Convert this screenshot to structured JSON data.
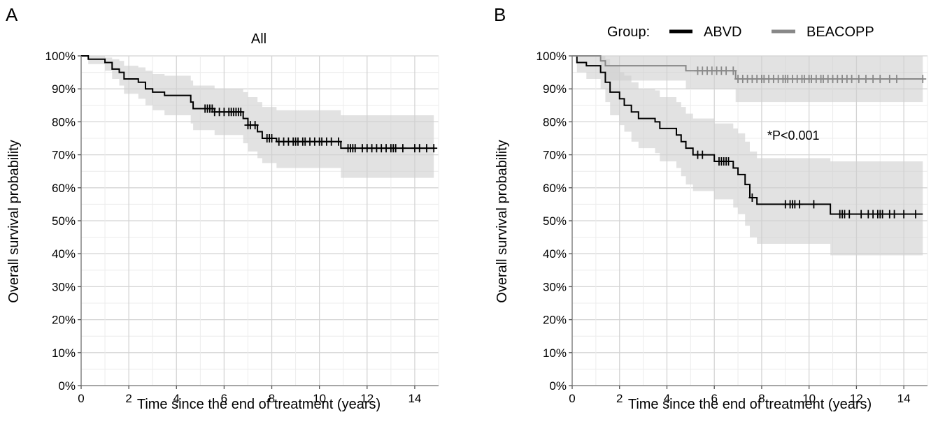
{
  "chart_data": [
    {
      "type": "line",
      "panel_label": "A",
      "title": "All",
      "xlabel": "Time since the end of treatment (years)",
      "ylabel": "Overall survival probability",
      "xlim": [
        0,
        15
      ],
      "ylim": [
        0,
        1
      ],
      "xticks": [
        0,
        2,
        4,
        6,
        8,
        10,
        12,
        14
      ],
      "yticks": [
        0,
        0.1,
        0.2,
        0.3,
        0.4,
        0.5,
        0.6,
        0.7,
        0.8,
        0.9,
        1.0
      ],
      "ytick_labels": [
        "0%",
        "10%",
        "20%",
        "30%",
        "40%",
        "50%",
        "60%",
        "70%",
        "80%",
        "90%",
        "100%"
      ],
      "grid": true,
      "series": [
        {
          "color": "#000000",
          "steps": [
            [
              0,
              1.0
            ],
            [
              0.3,
              0.99
            ],
            [
              1.0,
              0.98
            ],
            [
              1.3,
              0.96
            ],
            [
              1.6,
              0.95
            ],
            [
              1.8,
              0.93
            ],
            [
              2.4,
              0.92
            ],
            [
              2.7,
              0.9
            ],
            [
              3.0,
              0.89
            ],
            [
              3.5,
              0.88
            ],
            [
              4.6,
              0.86
            ],
            [
              4.7,
              0.84
            ],
            [
              5.6,
              0.83
            ],
            [
              6.8,
              0.81
            ],
            [
              7.0,
              0.79
            ],
            [
              7.4,
              0.77
            ],
            [
              7.6,
              0.75
            ],
            [
              8.2,
              0.74
            ],
            [
              10.9,
              0.72
            ],
            [
              14.8,
              0.72
            ]
          ],
          "ci_upper": [
            [
              0,
              1.0
            ],
            [
              0.3,
              1.0
            ],
            [
              1.0,
              0.995
            ],
            [
              1.3,
              0.99
            ],
            [
              1.6,
              0.985
            ],
            [
              1.8,
              0.97
            ],
            [
              2.4,
              0.965
            ],
            [
              2.7,
              0.955
            ],
            [
              3.0,
              0.945
            ],
            [
              3.5,
              0.94
            ],
            [
              4.6,
              0.925
            ],
            [
              4.7,
              0.91
            ],
            [
              5.6,
              0.9
            ],
            [
              6.8,
              0.89
            ],
            [
              7.0,
              0.875
            ],
            [
              7.4,
              0.86
            ],
            [
              7.6,
              0.845
            ],
            [
              8.2,
              0.835
            ],
            [
              10.9,
              0.82
            ],
            [
              14.8,
              0.82
            ]
          ],
          "ci_lower": [
            [
              0,
              1.0
            ],
            [
              0.3,
              0.975
            ],
            [
              1.0,
              0.955
            ],
            [
              1.3,
              0.93
            ],
            [
              1.6,
              0.91
            ],
            [
              1.8,
              0.885
            ],
            [
              2.4,
              0.87
            ],
            [
              2.7,
              0.85
            ],
            [
              3.0,
              0.835
            ],
            [
              3.5,
              0.82
            ],
            [
              4.6,
              0.795
            ],
            [
              4.7,
              0.775
            ],
            [
              5.6,
              0.76
            ],
            [
              6.8,
              0.735
            ],
            [
              7.0,
              0.71
            ],
            [
              7.4,
              0.69
            ],
            [
              7.6,
              0.675
            ],
            [
              8.2,
              0.66
            ],
            [
              10.9,
              0.63
            ],
            [
              14.8,
              0.63
            ]
          ],
          "censor": [
            5.2,
            5.3,
            5.4,
            5.5,
            5.6,
            5.8,
            6.0,
            6.2,
            6.3,
            6.4,
            6.5,
            6.6,
            6.7,
            7.0,
            7.1,
            7.3,
            7.8,
            7.9,
            8.0,
            8.3,
            8.5,
            8.7,
            8.9,
            9.0,
            9.1,
            9.3,
            9.4,
            9.6,
            9.8,
            10.0,
            10.1,
            10.3,
            10.5,
            10.8,
            11.2,
            11.3,
            11.4,
            11.5,
            11.8,
            12.0,
            12.2,
            12.4,
            12.6,
            12.8,
            13.0,
            13.1,
            13.2,
            13.5,
            14.0,
            14.2,
            14.5,
            14.8
          ]
        }
      ]
    },
    {
      "type": "line",
      "panel_label": "B",
      "title": "",
      "legend": {
        "title": "Group:",
        "position": "top"
      },
      "annotation": "*P<0.001",
      "xlabel": "Time since the end of treatment (years)",
      "ylabel": "Overall survival probability",
      "xlim": [
        0,
        15
      ],
      "ylim": [
        0,
        1
      ],
      "xticks": [
        0,
        2,
        4,
        6,
        8,
        10,
        12,
        14
      ],
      "yticks": [
        0,
        0.1,
        0.2,
        0.3,
        0.4,
        0.5,
        0.6,
        0.7,
        0.8,
        0.9,
        1.0
      ],
      "ytick_labels": [
        "0%",
        "10%",
        "20%",
        "30%",
        "40%",
        "50%",
        "60%",
        "70%",
        "80%",
        "90%",
        "100%"
      ],
      "grid": true,
      "series": [
        {
          "name": "ABVD",
          "color": "#000000",
          "steps": [
            [
              0,
              1.0
            ],
            [
              0.2,
              0.98
            ],
            [
              0.6,
              0.97
            ],
            [
              1.2,
              0.95
            ],
            [
              1.4,
              0.92
            ],
            [
              1.6,
              0.89
            ],
            [
              2.0,
              0.87
            ],
            [
              2.2,
              0.85
            ],
            [
              2.5,
              0.83
            ],
            [
              2.8,
              0.81
            ],
            [
              3.5,
              0.8
            ],
            [
              3.7,
              0.78
            ],
            [
              4.4,
              0.76
            ],
            [
              4.6,
              0.74
            ],
            [
              4.8,
              0.72
            ],
            [
              5.1,
              0.7
            ],
            [
              6.0,
              0.68
            ],
            [
              6.8,
              0.66
            ],
            [
              7.0,
              0.64
            ],
            [
              7.3,
              0.61
            ],
            [
              7.5,
              0.57
            ],
            [
              7.8,
              0.55
            ],
            [
              10.9,
              0.52
            ],
            [
              14.8,
              0.52
            ]
          ],
          "ci_upper": [
            [
              0,
              1.0
            ],
            [
              0.2,
              1.0
            ],
            [
              0.6,
              1.0
            ],
            [
              1.2,
              1.0
            ],
            [
              1.4,
              0.99
            ],
            [
              1.6,
              0.97
            ],
            [
              2.0,
              0.95
            ],
            [
              2.2,
              0.94
            ],
            [
              2.5,
              0.92
            ],
            [
              2.8,
              0.9
            ],
            [
              3.5,
              0.895
            ],
            [
              3.7,
              0.875
            ],
            [
              4.4,
              0.86
            ],
            [
              4.6,
              0.845
            ],
            [
              4.8,
              0.825
            ],
            [
              5.1,
              0.81
            ],
            [
              6.0,
              0.795
            ],
            [
              6.8,
              0.78
            ],
            [
              7.0,
              0.765
            ],
            [
              7.3,
              0.74
            ],
            [
              7.5,
              0.71
            ],
            [
              7.8,
              0.69
            ],
            [
              10.9,
              0.68
            ],
            [
              14.8,
              0.68
            ]
          ],
          "ci_lower": [
            [
              0,
              1.0
            ],
            [
              0.2,
              0.95
            ],
            [
              0.6,
              0.93
            ],
            [
              1.2,
              0.9
            ],
            [
              1.4,
              0.86
            ],
            [
              1.6,
              0.82
            ],
            [
              2.0,
              0.79
            ],
            [
              2.2,
              0.77
            ],
            [
              2.5,
              0.74
            ],
            [
              2.8,
              0.72
            ],
            [
              3.5,
              0.705
            ],
            [
              3.7,
              0.68
            ],
            [
              4.4,
              0.66
            ],
            [
              4.6,
              0.635
            ],
            [
              4.8,
              0.61
            ],
            [
              5.1,
              0.59
            ],
            [
              6.0,
              0.565
            ],
            [
              6.8,
              0.54
            ],
            [
              7.0,
              0.52
            ],
            [
              7.3,
              0.485
            ],
            [
              7.5,
              0.45
            ],
            [
              7.8,
              0.43
            ],
            [
              10.9,
              0.395
            ],
            [
              14.8,
              0.395
            ]
          ],
          "censor": [
            5.3,
            5.5,
            6.2,
            6.3,
            6.4,
            6.5,
            6.6,
            7.6,
            9.0,
            9.2,
            9.3,
            9.4,
            9.6,
            10.2,
            11.3,
            11.4,
            11.5,
            11.7,
            12.2,
            12.5,
            12.7,
            12.9,
            13.0,
            13.1,
            13.4,
            13.6,
            14.0,
            14.5
          ]
        },
        {
          "name": "BEACOPP",
          "color": "#888888",
          "steps": [
            [
              0,
              1.0
            ],
            [
              1.2,
              0.985
            ],
            [
              1.4,
              0.97
            ],
            [
              4.8,
              0.955
            ],
            [
              6.9,
              0.93
            ],
            [
              14.8,
              0.93
            ]
          ],
          "ci_upper": [
            [
              0,
              1.0
            ],
            [
              1.2,
              1.0
            ],
            [
              1.4,
              1.0
            ],
            [
              4.8,
              1.0
            ],
            [
              6.9,
              1.0
            ],
            [
              14.8,
              1.0
            ]
          ],
          "ci_lower": [
            [
              0,
              1.0
            ],
            [
              1.2,
              0.955
            ],
            [
              1.4,
              0.925
            ],
            [
              4.8,
              0.9
            ],
            [
              6.9,
              0.86
            ],
            [
              14.8,
              0.86
            ]
          ],
          "censor": [
            5.3,
            5.5,
            5.7,
            5.9,
            6.1,
            6.3,
            6.5,
            6.8,
            7.0,
            7.2,
            7.4,
            7.6,
            7.8,
            8.0,
            8.1,
            8.3,
            8.5,
            8.7,
            8.9,
            9.0,
            9.1,
            9.3,
            9.5,
            9.7,
            9.8,
            10.0,
            10.1,
            10.3,
            10.5,
            10.6,
            10.8,
            11.0,
            11.2,
            11.4,
            11.6,
            11.8,
            12.1,
            12.4,
            12.7,
            13.0,
            13.4,
            13.7,
            14.8
          ]
        }
      ]
    }
  ]
}
